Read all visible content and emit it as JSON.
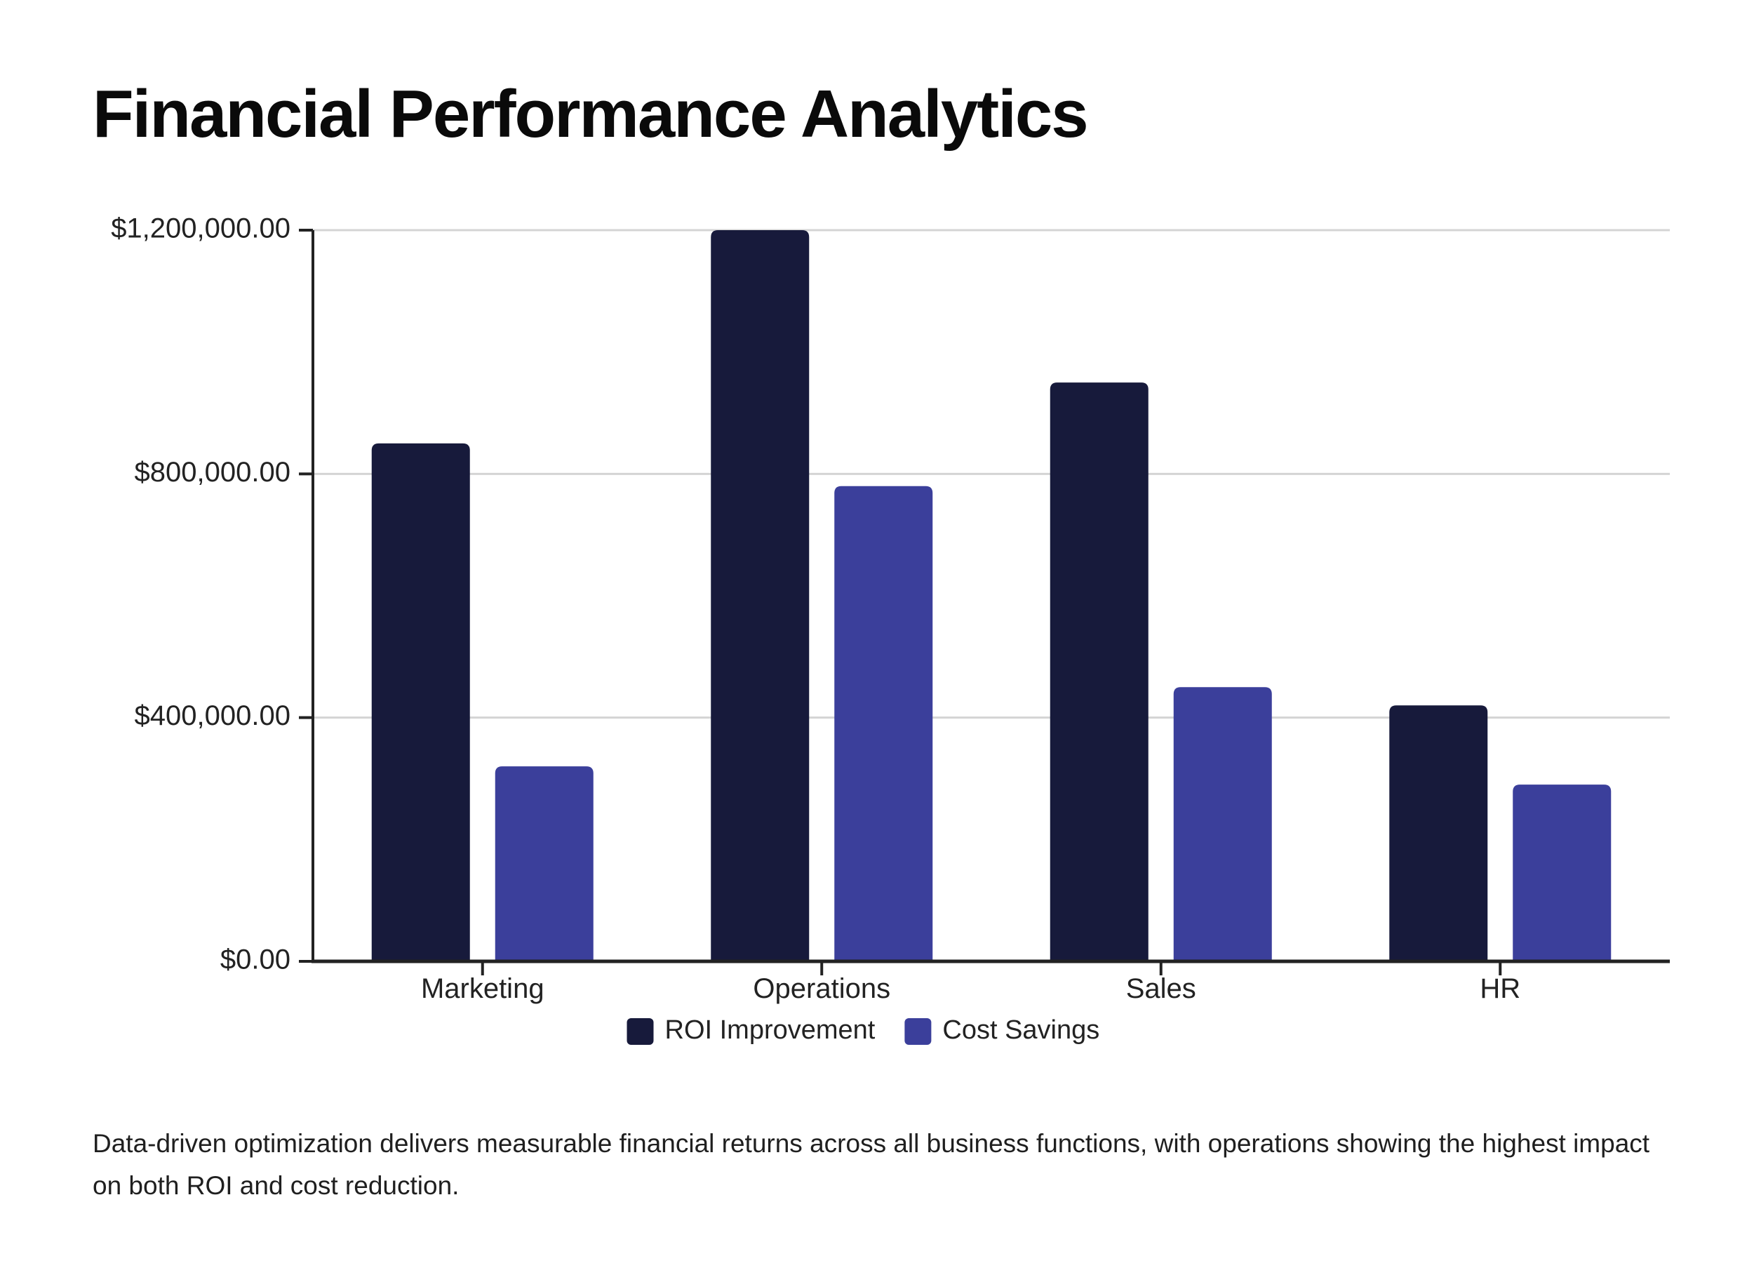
{
  "page": {
    "title": "Financial Performance Analytics",
    "caption": "Data-driven optimization delivers measurable financial returns across all business functions, with operations showing the highest impact on both ROI and cost reduction."
  },
  "chart_data": {
    "type": "bar",
    "title": "",
    "xlabel": "",
    "ylabel": "",
    "categories": [
      "Marketing",
      "Operations",
      "Sales",
      "HR"
    ],
    "series": [
      {
        "name": "ROI Improvement",
        "values": [
          850000,
          1200000,
          950000,
          420000
        ],
        "color": "#171a3b"
      },
      {
        "name": "Cost Savings",
        "values": [
          320000,
          780000,
          450000,
          290000
        ],
        "color": "#3b3f9b"
      }
    ],
    "ylim": [
      0,
      1200000
    ],
    "yticks": [
      0,
      400000,
      800000,
      1200000
    ],
    "ytick_labels": [
      "$0.00",
      "$400,000.00",
      "$800,000.00",
      "$1,200,000.00"
    ],
    "grid": true,
    "legend": "bottom-center"
  }
}
